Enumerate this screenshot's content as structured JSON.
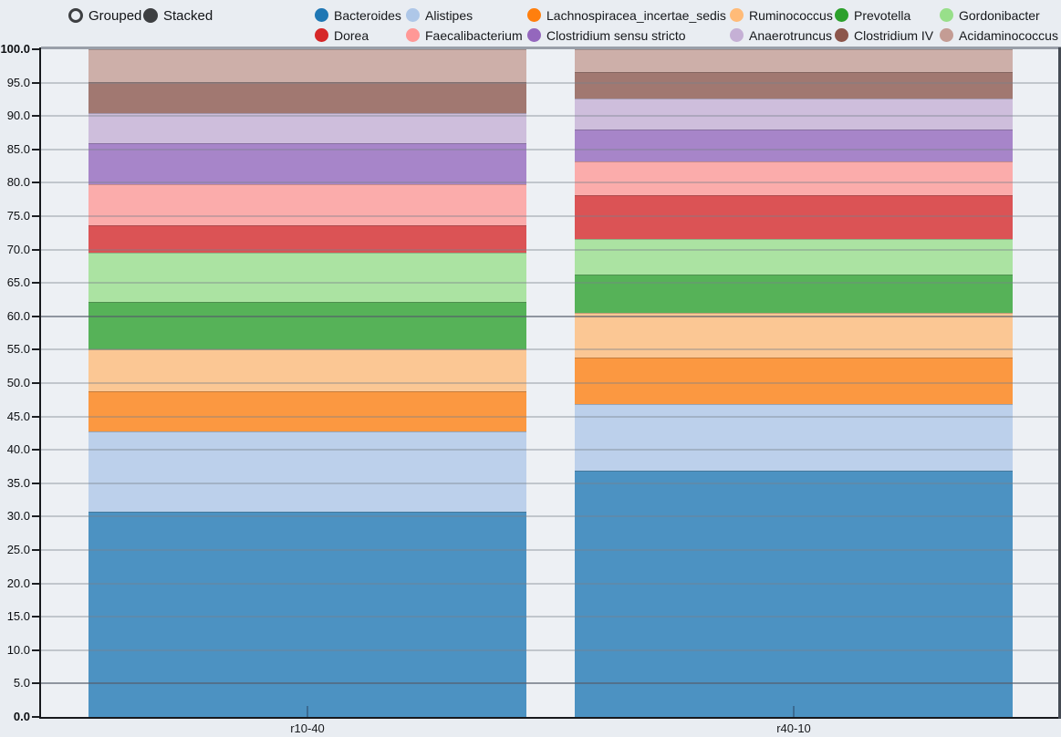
{
  "controls": {
    "options": [
      {
        "label": "Grouped",
        "selected": false
      },
      {
        "label": "Stacked",
        "selected": true
      }
    ]
  },
  "chart_data": {
    "type": "bar",
    "stacked": true,
    "orientation": "vertical",
    "title": "",
    "xlabel": "",
    "ylabel": "",
    "categories": [
      "r10-40",
      "r40-10"
    ],
    "series": [
      {
        "name": "Bacteroides",
        "color": "#1f77b4",
        "values": [
          30.7,
          36.9
        ]
      },
      {
        "name": "Alistipes",
        "color": "#aec7e8",
        "values": [
          12.0,
          10.0
        ]
      },
      {
        "name": "Lachnospiracea_incertae_sedis",
        "color": "#ff7f0e",
        "values": [
          6.1,
          6.9
        ]
      },
      {
        "name": "Ruminococcus",
        "color": "#ffbb78",
        "values": [
          6.2,
          6.7
        ]
      },
      {
        "name": "Prevotella",
        "color": "#2ca02c",
        "values": [
          7.1,
          5.7
        ]
      },
      {
        "name": "Gordonibacter",
        "color": "#98df8a",
        "values": [
          7.4,
          5.4
        ]
      },
      {
        "name": "Dorea",
        "color": "#d62728",
        "values": [
          4.1,
          6.6
        ]
      },
      {
        "name": "Faecalibacterium",
        "color": "#ff9896",
        "values": [
          6.2,
          5.0
        ]
      },
      {
        "name": "Clostridium sensu stricto",
        "color": "#9467bd",
        "values": [
          6.1,
          4.8
        ]
      },
      {
        "name": "Anaerotruncus",
        "color": "#c5b0d5",
        "values": [
          4.6,
          4.6
        ]
      },
      {
        "name": "Clostridium IV",
        "color": "#8c564b",
        "values": [
          4.6,
          4.0
        ]
      },
      {
        "name": "Acidaminococcus",
        "color": "#c49c94",
        "values": [
          4.9,
          3.4
        ]
      }
    ],
    "y_axis": {
      "min": 0,
      "max": 100,
      "tick_step": 5,
      "tick_labels_bottom_to_top": [
        "0.0",
        "5.0",
        "10.0",
        "15.0",
        "20.0",
        "25.0",
        "30.0",
        "35.0",
        "40.0",
        "45.0",
        "50.0",
        "55.0",
        "60.0",
        "65.0",
        "70.0",
        "75.0",
        "80.0",
        "85.0",
        "90.0",
        "95.0",
        "100.0"
      ],
      "bold_tick_labels": [
        "0.0",
        "100.0"
      ],
      "darker_gridlines_at": [
        5,
        60
      ]
    },
    "grid": true,
    "legend_position": "top",
    "legend_rows": 2
  }
}
